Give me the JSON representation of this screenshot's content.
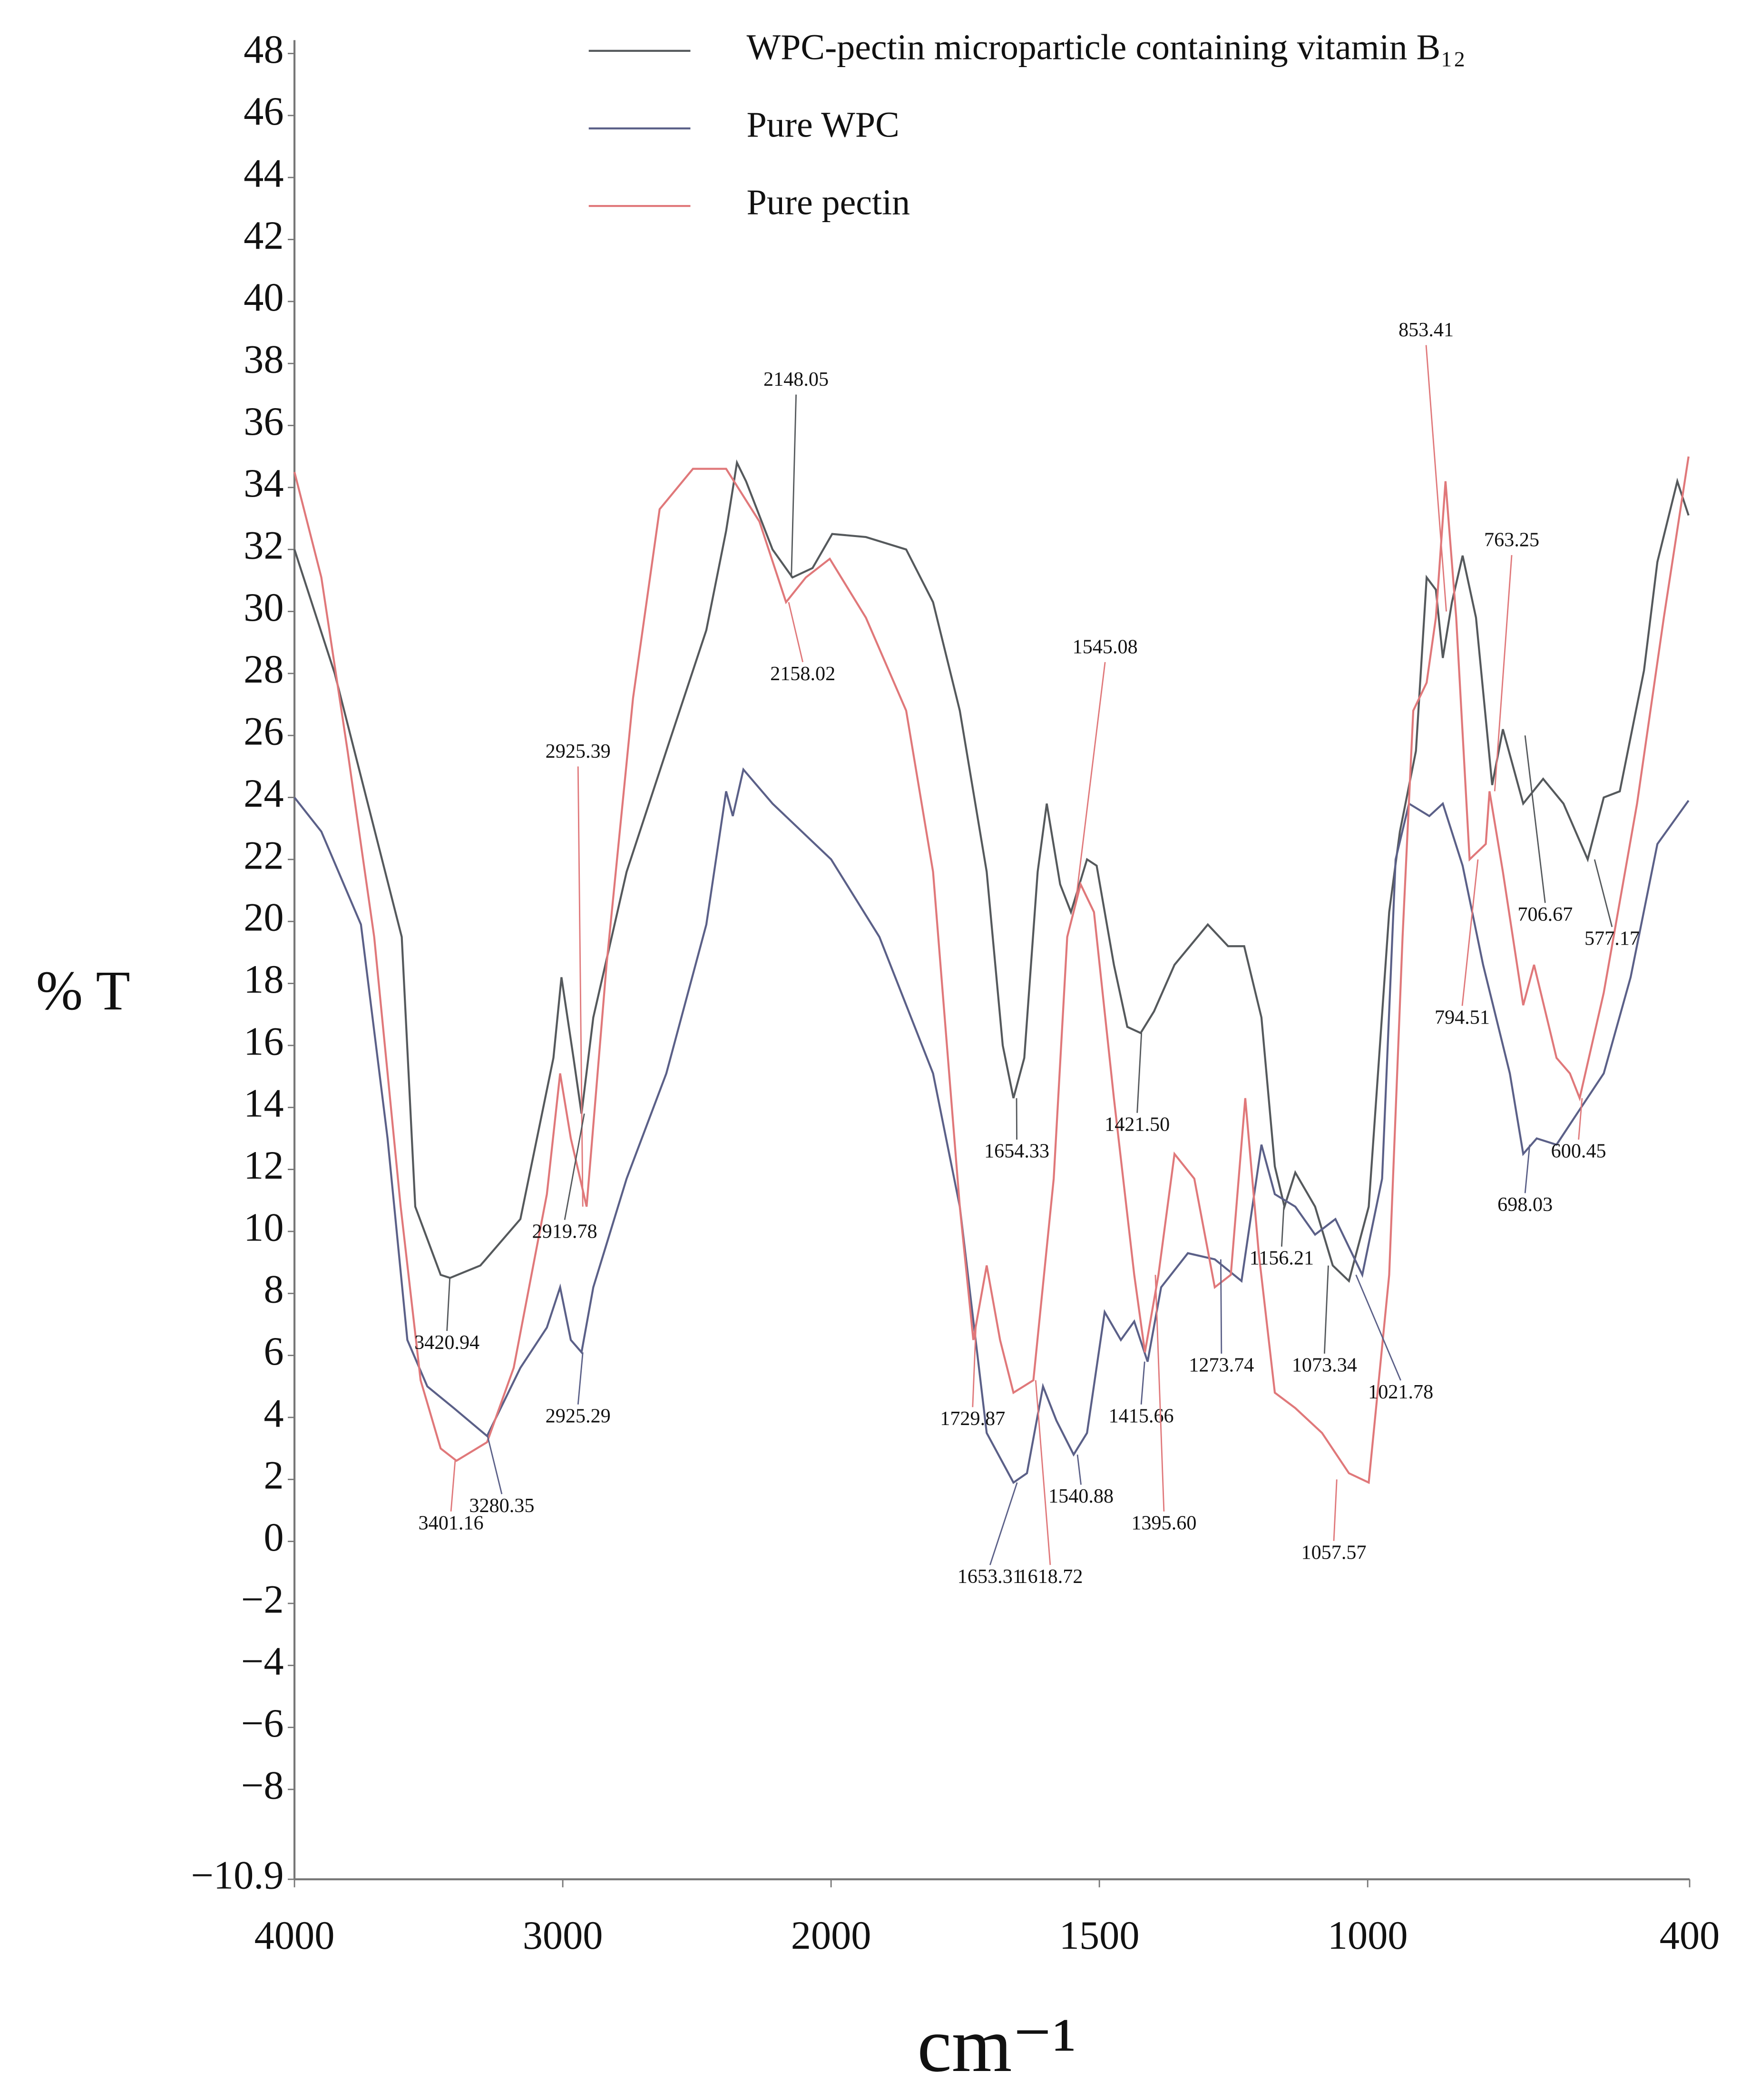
{
  "chart_data": {
    "type": "line",
    "xlabel": "cm⁻¹",
    "ylabel": "% T",
    "xlim": [
      4000,
      400
    ],
    "x_scale_break": 2000,
    "xticks": [
      4000,
      3000,
      2000,
      1500,
      1000,
      400
    ],
    "ylim": [
      -10.9,
      48
    ],
    "yticks": [
      {
        "value": -10.9,
        "label": "−10.9"
      },
      {
        "value": -8,
        "label": "−8"
      },
      {
        "value": -6,
        "label": "−6"
      },
      {
        "value": -4,
        "label": "−4"
      },
      {
        "value": -2,
        "label": "−2"
      },
      0,
      2,
      4,
      6,
      8,
      10,
      12,
      14,
      16,
      18,
      20,
      22,
      24,
      26,
      28,
      30,
      32,
      34,
      36,
      38,
      40,
      42,
      44,
      46,
      48
    ],
    "grid": false,
    "series": [
      {
        "name": "WPC-pectin microparticle containing vitamin B₁₂",
        "color": "#55595c",
        "x": [
          4000,
          3850,
          3600,
          3550,
          3455,
          3420,
          3307,
          3158,
          3035,
          3005,
          2960,
          2930,
          2886,
          2762,
          2614,
          2465,
          2391,
          2351,
          2317,
          2218,
          2144,
          2069,
          1998,
          1935,
          1860,
          1810,
          1760,
          1710,
          1680,
          1660,
          1640,
          1615,
          1598,
          1573,
          1553,
          1523,
          1505,
          1473,
          1448,
          1423,
          1398,
          1360,
          1298,
          1260,
          1230,
          1198,
          1173,
          1155,
          1135,
          1098,
          1065,
          1035,
          998,
          960,
          940,
          910,
          890,
          873,
          860,
          843,
          823,
          798,
          768,
          748,
          710,
          673,
          635,
          590,
          560,
          530,
          485,
          460,
          423,
          402
        ],
        "values": [
          32,
          28,
          19.5,
          10.8,
          8.6,
          8.5,
          8.9,
          10.4,
          15.6,
          18.2,
          15.6,
          13.8,
          16.9,
          21.6,
          25.5,
          29.4,
          32.6,
          34.8,
          34.2,
          32,
          31.1,
          31.4,
          32.5,
          32.4,
          32,
          30.3,
          26.8,
          21.6,
          16,
          14.3,
          15.6,
          21.6,
          23.8,
          21.2,
          20.3,
          22,
          21.8,
          18.6,
          16.6,
          16.4,
          17.1,
          18.6,
          19.9,
          19.2,
          19.2,
          16.9,
          12.1,
          10.8,
          11.9,
          10.8,
          8.9,
          8.4,
          10.8,
          20.3,
          22.9,
          25.5,
          31.1,
          30.7,
          28.5,
          30.3,
          31.8,
          29.8,
          24.4,
          26.2,
          23.8,
          24.6,
          23.8,
          22,
          24,
          24.2,
          28.1,
          31.6,
          34.2,
          33.1
        ]
      },
      {
        "name": "Pure WPC",
        "color": "#5b6088",
        "x": [
          4000,
          3900,
          3752,
          3653,
          3579,
          3505,
          3406,
          3282,
          3158,
          3059,
          3010,
          2970,
          2930,
          2886,
          2762,
          2614,
          2465,
          2391,
          2366,
          2327,
          2218,
          2000,
          1910,
          1810,
          1760,
          1710,
          1660,
          1635,
          1605,
          1580,
          1548,
          1523,
          1490,
          1460,
          1435,
          1410,
          1385,
          1335,
          1285,
          1235,
          1198,
          1173,
          1135,
          1098,
          1060,
          1010,
          973,
          948,
          923,
          885,
          860,
          823,
          785,
          735,
          710,
          685,
          648,
          610,
          560,
          510,
          460,
          402
        ],
        "values": [
          24,
          22.9,
          19.9,
          13,
          6.5,
          5,
          4.3,
          3.4,
          5.6,
          6.9,
          8.2,
          6.5,
          6.1,
          8.2,
          11.7,
          15.1,
          19.9,
          24.2,
          23.4,
          24.9,
          23.8,
          22,
          19.5,
          15.1,
          10.8,
          3.5,
          1.9,
          2.2,
          5,
          3.9,
          2.8,
          3.5,
          7.4,
          6.5,
          7.1,
          5.8,
          8.2,
          9.3,
          9.1,
          8.4,
          12.8,
          11.2,
          10.8,
          9.9,
          10.4,
          8.6,
          11.7,
          22,
          23.8,
          23.4,
          23.8,
          21.8,
          18.6,
          15.1,
          12.5,
          13,
          12.8,
          13.8,
          15.1,
          18.2,
          22.5,
          23.9
        ]
      },
      {
        "name": "Pure pectin",
        "color": "#e0787a",
        "x": [
          4000,
          3900,
          3802,
          3703,
          3604,
          3530,
          3455,
          3396,
          3282,
          3183,
          3059,
          3010,
          2970,
          2911,
          2837,
          2738,
          2639,
          2515,
          2391,
          2267,
          2168,
          2094,
          2005,
          1935,
          1860,
          1810,
          1760,
          1735,
          1710,
          1685,
          1660,
          1623,
          1585,
          1560,
          1535,
          1510,
          1473,
          1435,
          1415,
          1390,
          1360,
          1323,
          1285,
          1255,
          1228,
          1203,
          1173,
          1135,
          1085,
          1035,
          998,
          960,
          935,
          915,
          890,
          873,
          855,
          835,
          810,
          780,
          773,
          748,
          710,
          690,
          648,
          623,
          605,
          560,
          498,
          448,
          402
        ],
        "values": [
          34.5,
          31.1,
          25.5,
          19.5,
          10.8,
          5.2,
          3,
          2.6,
          3.2,
          5.6,
          11.2,
          15.1,
          13,
          10.8,
          18.6,
          27.2,
          33.3,
          34.6,
          34.6,
          32.9,
          30.3,
          31.1,
          31.7,
          29.8,
          26.8,
          21.6,
          10.8,
          6.5,
          8.9,
          6.5,
          4.8,
          5.2,
          11.7,
          19.5,
          21.2,
          20.3,
          14.3,
          8.6,
          6.1,
          8.6,
          12.5,
          11.7,
          8.2,
          8.6,
          14.3,
          9.3,
          4.8,
          4.3,
          3.5,
          2.2,
          1.9,
          8.6,
          19.5,
          26.8,
          27.7,
          29.8,
          34.2,
          29.8,
          22,
          22.5,
          24.2,
          21.6,
          17.3,
          18.6,
          15.6,
          15.1,
          14.3,
          17.7,
          23.8,
          29.8,
          35
        ]
      }
    ],
    "annotations": [
      {
        "label": "3420.94",
        "x": 3420.94,
        "y": 8.5,
        "color": "#55595c"
      },
      {
        "label": "2925.39",
        "x": 2925.39,
        "y": 10.8,
        "color": "#e0787a"
      },
      {
        "label": "2919.78",
        "x": 2919.78,
        "y": 13.8,
        "color": "#55595c"
      },
      {
        "label": "2148.05",
        "x": 2148.05,
        "y": 31.1,
        "color": "#55595c"
      },
      {
        "label": "2158.02",
        "x": 2158.02,
        "y": 30.3,
        "color": "#e0787a"
      },
      {
        "label": "2925.29",
        "x": 2925.29,
        "y": 6.1,
        "color": "#5b6088"
      },
      {
        "label": "3401.16",
        "x": 3401.16,
        "y": 2.6,
        "color": "#e0787a"
      },
      {
        "label": "3280.35",
        "x": 3280.35,
        "y": 3.4,
        "color": "#5b6088"
      },
      {
        "label": "1654.33",
        "x": 1654.33,
        "y": 14.3,
        "color": "#55595c"
      },
      {
        "label": "1545.08",
        "x": 1545.08,
        "y": 20.5,
        "color": "#e0787a"
      },
      {
        "label": "1421.50",
        "x": 1421.5,
        "y": 16.4,
        "color": "#55595c"
      },
      {
        "label": "1729.87",
        "x": 1729.87,
        "y": 7,
        "color": "#e0787a"
      },
      {
        "label": "1653.31",
        "x": 1653.31,
        "y": 1.9,
        "color": "#5b6088"
      },
      {
        "label": "1618.72",
        "x": 1618.72,
        "y": 5.2,
        "color": "#e0787a"
      },
      {
        "label": "1540.88",
        "x": 1540.88,
        "y": 2.8,
        "color": "#5b6088"
      },
      {
        "label": "1415.66",
        "x": 1415.66,
        "y": 5.8,
        "color": "#5b6088"
      },
      {
        "label": "1395.60",
        "x": 1395.6,
        "y": 8.6,
        "color": "#e0787a"
      },
      {
        "label": "1273.74",
        "x": 1273.74,
        "y": 9.1,
        "color": "#5b6088"
      },
      {
        "label": "1156.21",
        "x": 1156.21,
        "y": 10.8,
        "color": "#55595c"
      },
      {
        "label": "1073.34",
        "x": 1073.34,
        "y": 8.9,
        "color": "#55595c"
      },
      {
        "label": "1021.78",
        "x": 1021.78,
        "y": 8.6,
        "color": "#5b6088"
      },
      {
        "label": "1057.57",
        "x": 1057.57,
        "y": 2,
        "color": "#e0787a"
      },
      {
        "label": "853.41",
        "x": 853.41,
        "y": 30,
        "color": "#e0787a"
      },
      {
        "label": "763.25",
        "x": 763.25,
        "y": 24.2,
        "color": "#e0787a"
      },
      {
        "label": "794.51",
        "x": 794.51,
        "y": 22,
        "color": "#e0787a"
      },
      {
        "label": "706.67",
        "x": 706.67,
        "y": 26,
        "color": "#55595c"
      },
      {
        "label": "577.17",
        "x": 577.17,
        "y": 22,
        "color": "#55595c"
      },
      {
        "label": "600.45",
        "x": 600.45,
        "y": 14.3,
        "color": "#e0787a"
      },
      {
        "label": "698.03",
        "x": 698.03,
        "y": 12.8,
        "color": "#5b6088"
      }
    ]
  }
}
